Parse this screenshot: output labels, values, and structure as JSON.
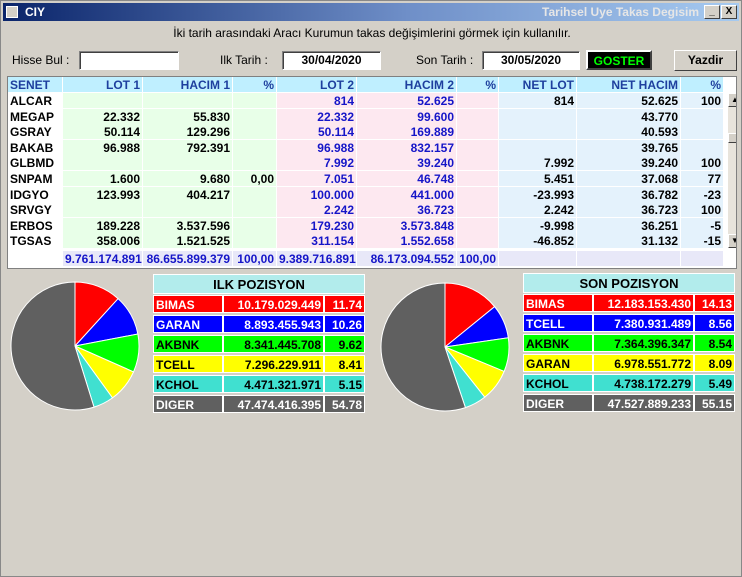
{
  "window": {
    "title": "CIY",
    "caption": "Tarihsel Uye Takas Degisim",
    "minimize_label": "_",
    "close_label": "X"
  },
  "info_text": "İki tarih arasındaki  Aracı Kurumun takas değişimlerini görmek için kullanılır.",
  "controls": {
    "hisse_label": "Hisse Bul :",
    "hisse_value": "",
    "ilk_label": "Ilk Tarih :",
    "ilk_value": "30/04/2020",
    "son_label": "Son Tarih :",
    "son_value": "30/05/2020",
    "goster_label": "GOSTER",
    "yazdir_label": "Yazdir"
  },
  "table": {
    "columns": [
      "SENET",
      "LOT 1",
      "HACIM 1",
      "%",
      "LOT 2",
      "HACIM 2",
      "%",
      "NET LOT",
      "NET HACIM",
      "%"
    ],
    "rows": [
      [
        "ALCAR",
        "",
        "",
        "",
        "814",
        "52.625",
        "",
        "814",
        "52.625",
        "100"
      ],
      [
        "MEGAP",
        "22.332",
        "55.830",
        "",
        "22.332",
        "99.600",
        "",
        "",
        "43.770",
        ""
      ],
      [
        "GSRAY",
        "50.114",
        "129.296",
        "",
        "50.114",
        "169.889",
        "",
        "",
        "40.593",
        ""
      ],
      [
        "BAKAB",
        "96.988",
        "792.391",
        "",
        "96.988",
        "832.157",
        "",
        "",
        "39.765",
        ""
      ],
      [
        "GLBMD",
        "",
        "",
        "",
        "7.992",
        "39.240",
        "",
        "7.992",
        "39.240",
        "100"
      ],
      [
        "SNPAM",
        "1.600",
        "9.680",
        "0,00",
        "7.051",
        "46.748",
        "",
        "5.451",
        "37.068",
        "77"
      ],
      [
        "IDGYO",
        "123.993",
        "404.217",
        "",
        "100.000",
        "441.000",
        "",
        "-23.993",
        "36.782",
        "-23"
      ],
      [
        "SRVGY",
        "",
        "",
        "",
        "2.242",
        "36.723",
        "",
        "2.242",
        "36.723",
        "100"
      ],
      [
        "ERBOS",
        "189.228",
        "3.537.596",
        "",
        "179.230",
        "3.573.848",
        "",
        "-9.998",
        "36.251",
        "-5"
      ],
      [
        "TGSAS",
        "358.006",
        "1.521.525",
        "",
        "311.154",
        "1.552.658",
        "",
        "-46.852",
        "31.132",
        "-15"
      ]
    ],
    "totals": [
      "",
      "9.761.174.891",
      "86.655.899.379",
      "100,00",
      "9.389.716.891",
      "86.173.094.552",
      "100,00",
      "",
      "",
      ""
    ]
  },
  "ilk_pozisyon": {
    "title": "ILK POZISYON",
    "rows": [
      {
        "name": "BIMAS",
        "value": "10.179.029.449",
        "pct": "11.74",
        "pct_num": 11.74,
        "bg": "#ff0000",
        "fg": "#ffffff"
      },
      {
        "name": "GARAN",
        "value": "8.893.455.943",
        "pct": "10.26",
        "pct_num": 10.26,
        "bg": "#0000ff",
        "fg": "#ffffff"
      },
      {
        "name": "AKBNK",
        "value": "8.341.445.708",
        "pct": "9.62",
        "pct_num": 9.62,
        "bg": "#00ff00",
        "fg": "#000000"
      },
      {
        "name": "TCELL",
        "value": "7.296.229.911",
        "pct": "8.41",
        "pct_num": 8.41,
        "bg": "#ffff00",
        "fg": "#000000"
      },
      {
        "name": "KCHOL",
        "value": "4.471.321.971",
        "pct": "5.15",
        "pct_num": 5.15,
        "bg": "#40e0d0",
        "fg": "#000000"
      },
      {
        "name": "DIGER",
        "value": "47.474.416.395",
        "pct": "54.78",
        "pct_num": 54.78,
        "bg": "#606060",
        "fg": "#ffffff"
      }
    ]
  },
  "son_pozisyon": {
    "title": "SON POZISYON",
    "rows": [
      {
        "name": "BIMAS",
        "value": "12.183.153.430",
        "pct": "14.13",
        "pct_num": 14.13,
        "bg": "#ff0000",
        "fg": "#ffffff"
      },
      {
        "name": "TCELL",
        "value": "7.380.931.489",
        "pct": "8.56",
        "pct_num": 8.56,
        "bg": "#0000ff",
        "fg": "#ffffff"
      },
      {
        "name": "AKBNK",
        "value": "7.364.396.347",
        "pct": "8.54",
        "pct_num": 8.54,
        "bg": "#00ff00",
        "fg": "#000000"
      },
      {
        "name": "GARAN",
        "value": "6.978.551.772",
        "pct": "8.09",
        "pct_num": 8.09,
        "bg": "#ffff00",
        "fg": "#000000"
      },
      {
        "name": "KCHOL",
        "value": "4.738.172.279",
        "pct": "5.49",
        "pct_num": 5.49,
        "bg": "#40e0d0",
        "fg": "#000000"
      },
      {
        "name": "DIGER",
        "value": "47.527.889.233",
        "pct": "55.15",
        "pct_num": 55.15,
        "bg": "#606060",
        "fg": "#ffffff"
      }
    ]
  }
}
